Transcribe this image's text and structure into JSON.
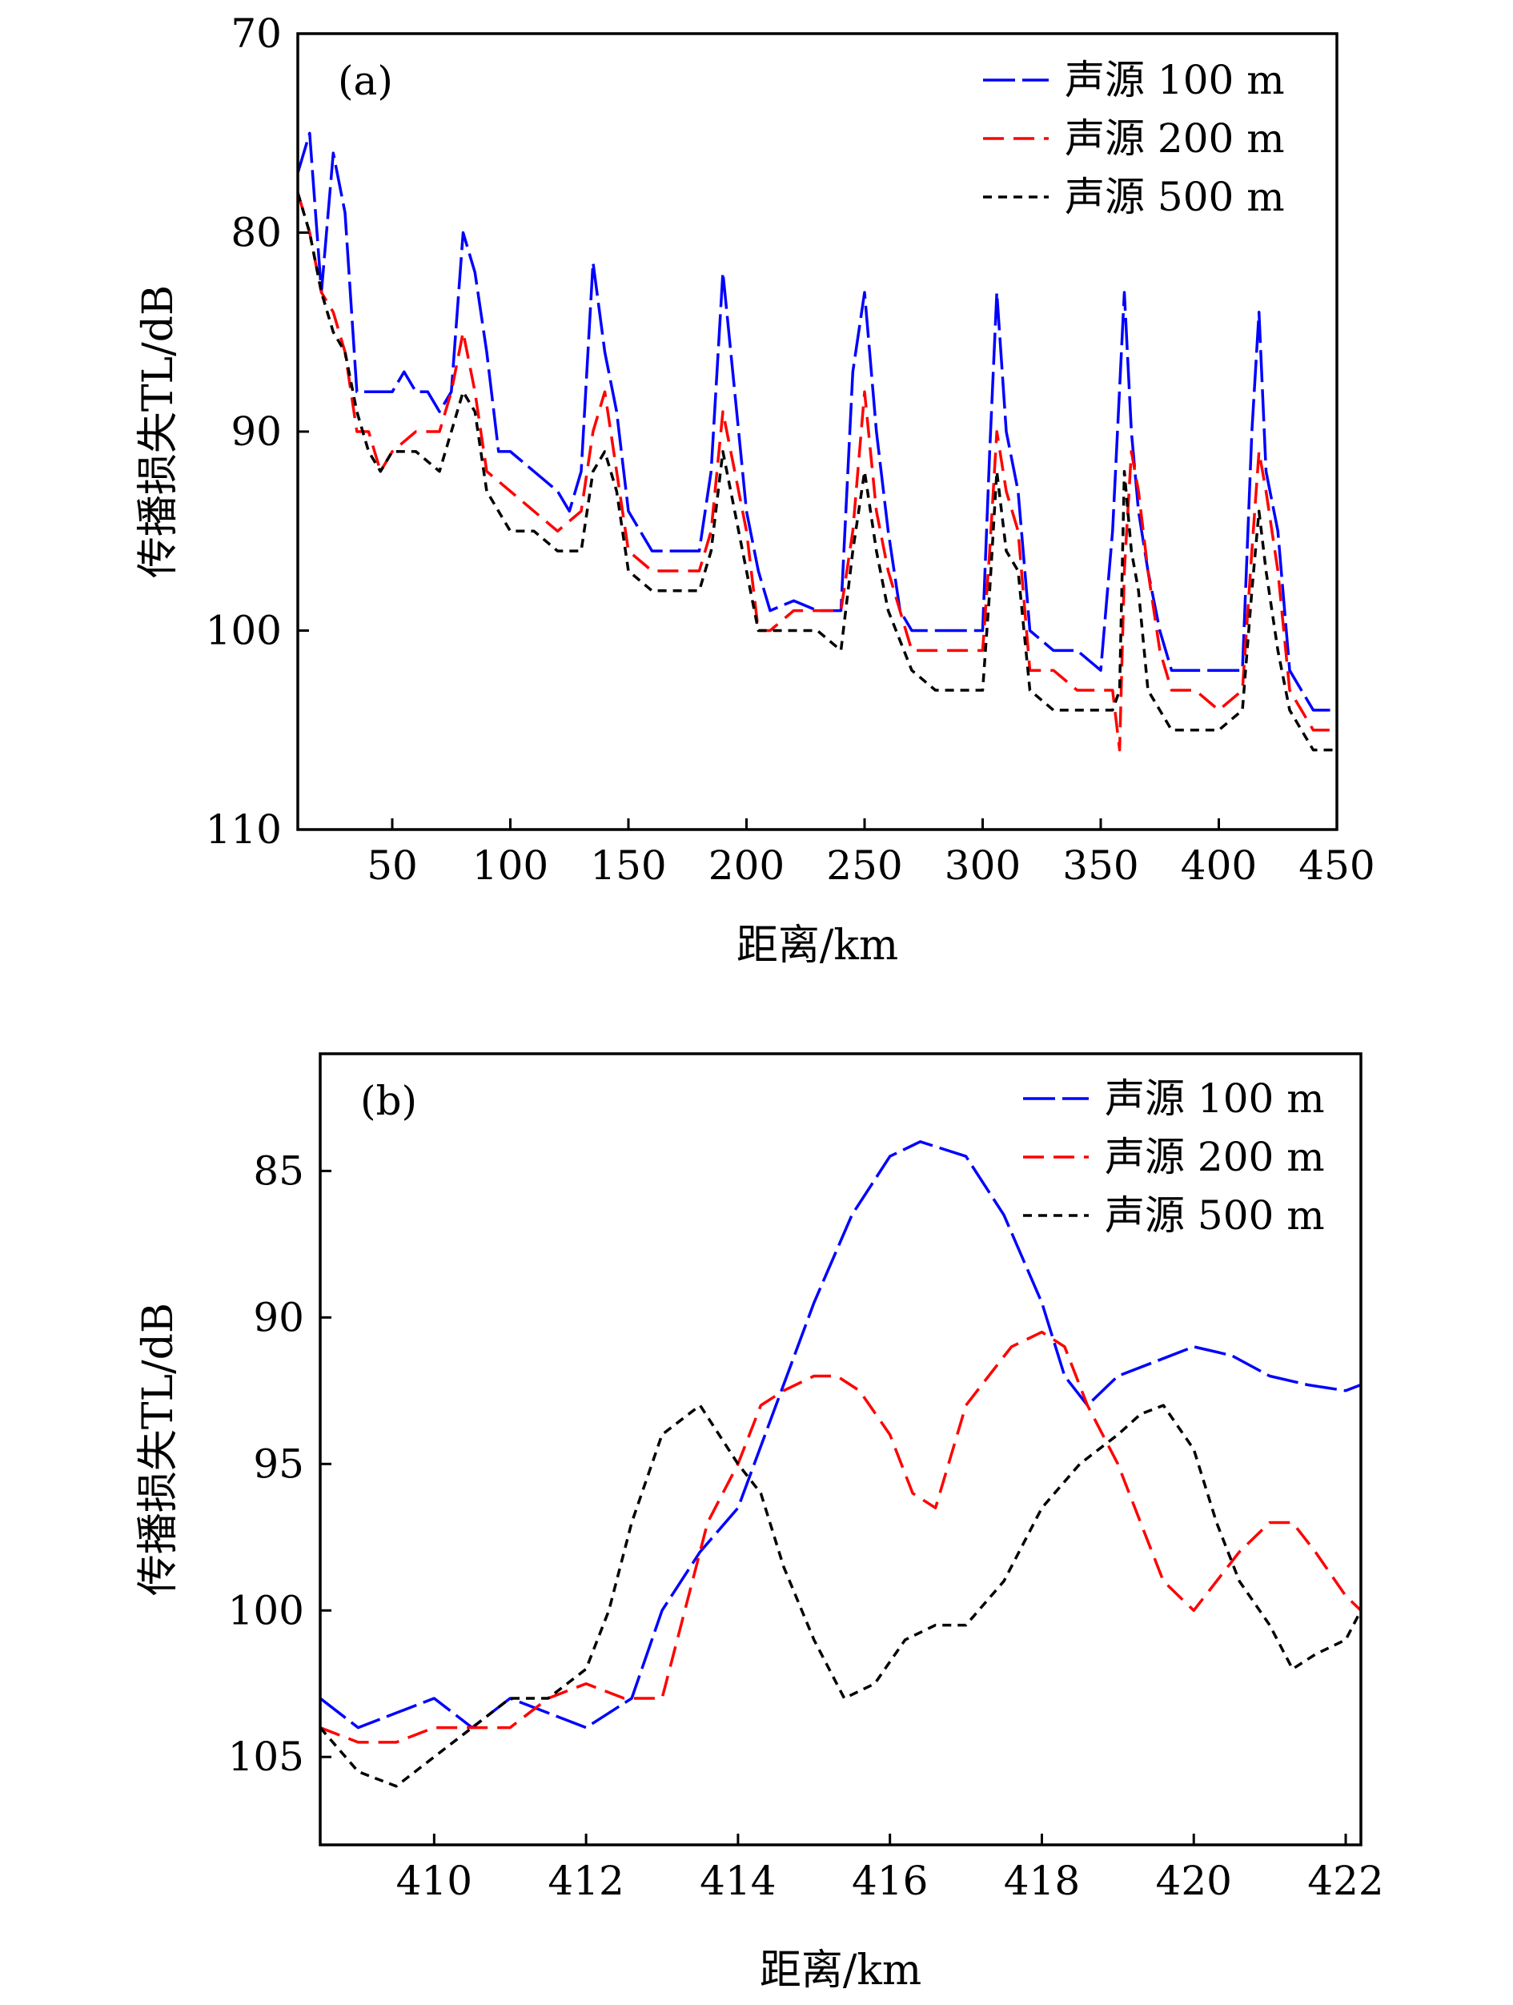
{
  "chart_data": [
    {
      "type": "line",
      "panel_label": "(a)",
      "xlabel": "距离/km",
      "ylabel": "传播损失TL/dB",
      "xlim": [
        10,
        450
      ],
      "ylim": [
        110,
        70
      ],
      "y_inverted": true,
      "xticks": [
        50,
        100,
        150,
        200,
        250,
        300,
        350,
        400,
        450
      ],
      "yticks": [
        70,
        80,
        90,
        100,
        110
      ],
      "legend_position": "top-right",
      "series": [
        {
          "name": "声源 100 m",
          "color": "#0000ff",
          "dash": "long",
          "x": [
            10,
            15,
            20,
            25,
            30,
            35,
            40,
            45,
            50,
            55,
            60,
            65,
            70,
            75,
            80,
            85,
            90,
            95,
            100,
            110,
            120,
            125,
            130,
            135,
            140,
            145,
            150,
            160,
            170,
            180,
            185,
            190,
            195,
            200,
            205,
            210,
            220,
            230,
            240,
            245,
            250,
            255,
            260,
            265,
            270,
            280,
            290,
            300,
            303,
            306,
            310,
            315,
            320,
            330,
            340,
            350,
            355,
            360,
            363,
            366,
            370,
            375,
            380,
            390,
            400,
            410,
            414,
            417,
            420,
            425,
            430,
            440,
            450
          ],
          "y": [
            77,
            75,
            83,
            76,
            79,
            88,
            88,
            88,
            88,
            87,
            88,
            88,
            89,
            88,
            80,
            82,
            86,
            91,
            91,
            92,
            93,
            94,
            92,
            81.5,
            86,
            89,
            94,
            96,
            96,
            96,
            92,
            82,
            88,
            94,
            97,
            99,
            98.5,
            99,
            99,
            87,
            83,
            90,
            95,
            99,
            100,
            100,
            100,
            100,
            91,
            83,
            90,
            93,
            100,
            101,
            101,
            102,
            95,
            83,
            90,
            94,
            97,
            100,
            102,
            102,
            102,
            102,
            90,
            84,
            92,
            95,
            102,
            104,
            104
          ]
        },
        {
          "name": "声源 200 m",
          "color": "#ff0000",
          "dash": "medium",
          "x": [
            10,
            15,
            20,
            25,
            30,
            35,
            40,
            45,
            50,
            60,
            70,
            75,
            80,
            85,
            90,
            100,
            110,
            120,
            130,
            135,
            140,
            145,
            150,
            160,
            170,
            180,
            185,
            190,
            195,
            200,
            205,
            210,
            220,
            230,
            240,
            245,
            250,
            255,
            260,
            270,
            280,
            290,
            300,
            303,
            306,
            310,
            315,
            320,
            330,
            340,
            350,
            355,
            358,
            360,
            363,
            366,
            370,
            375,
            380,
            390,
            400,
            410,
            414,
            417,
            420,
            425,
            430,
            440,
            450
          ],
          "y": [
            78,
            80,
            83,
            84,
            86,
            90,
            90,
            92,
            91,
            90,
            90,
            88,
            85,
            88,
            92,
            93,
            94,
            95,
            94,
            90,
            88,
            92,
            96,
            97,
            97,
            97,
            95,
            89,
            92,
            95,
            100,
            100,
            99,
            99,
            99,
            95,
            88,
            94,
            97,
            101,
            101,
            101,
            101,
            96,
            90,
            93,
            95,
            102,
            102,
            103,
            103,
            103,
            106,
            97,
            91,
            93,
            97,
            101,
            103,
            103,
            104,
            103,
            96,
            91,
            93,
            97,
            103,
            105,
            105
          ]
        },
        {
          "name": "声源 500 m",
          "color": "#000000",
          "dash": "short",
          "x": [
            10,
            15,
            20,
            25,
            30,
            35,
            40,
            45,
            50,
            60,
            70,
            75,
            80,
            85,
            90,
            100,
            110,
            120,
            130,
            135,
            140,
            145,
            150,
            160,
            170,
            180,
            185,
            190,
            195,
            200,
            205,
            210,
            220,
            230,
            240,
            245,
            250,
            255,
            260,
            270,
            280,
            290,
            300,
            303,
            306,
            310,
            315,
            320,
            330,
            340,
            350,
            355,
            358,
            360,
            363,
            366,
            370,
            375,
            380,
            390,
            400,
            410,
            414,
            417,
            420,
            425,
            430,
            440,
            450
          ],
          "y": [
            78,
            80,
            83,
            85,
            86,
            89,
            91,
            92,
            91,
            91,
            92,
            90,
            88,
            89,
            93,
            95,
            95,
            96,
            96,
            92,
            91,
            93,
            97,
            98,
            98,
            98,
            96,
            91,
            94,
            97,
            100,
            100,
            100,
            100,
            101,
            96,
            92,
            96,
            99,
            102,
            103,
            103,
            103,
            98,
            92,
            96,
            97,
            103,
            104,
            104,
            104,
            104,
            103,
            92,
            96,
            98,
            103,
            104,
            105,
            105,
            105,
            104,
            98,
            94,
            97,
            101,
            104,
            106,
            106
          ]
        }
      ]
    },
    {
      "type": "line",
      "panel_label": "(b)",
      "xlabel": "距离/km",
      "ylabel": "传播损失TL/dB",
      "xlim": [
        408.5,
        422.2
      ],
      "ylim": [
        108,
        81
      ],
      "y_inverted": true,
      "xticks": [
        410,
        412,
        414,
        416,
        418,
        420,
        422
      ],
      "yticks": [
        85,
        90,
        95,
        100,
        105
      ],
      "legend_position": "top-right",
      "series": [
        {
          "name": "声源 100 m",
          "color": "#0000ff",
          "dash": "long",
          "x": [
            408.5,
            409,
            409.5,
            410,
            410.5,
            411,
            411.5,
            412,
            412.3,
            412.6,
            413,
            413.5,
            414,
            414.5,
            415,
            415.5,
            416,
            416.4,
            417,
            417.5,
            418,
            418.3,
            418.6,
            419,
            419.5,
            420,
            420.5,
            421,
            421.5,
            422,
            422.2
          ],
          "y": [
            103,
            104,
            103.5,
            103,
            104,
            103,
            103.5,
            104,
            103.5,
            103,
            100,
            98,
            96.5,
            93,
            89.5,
            86.5,
            84.5,
            84,
            84.5,
            86.5,
            89.5,
            92,
            93,
            92,
            91.5,
            91,
            91.3,
            92,
            92.3,
            92.5,
            92.3
          ]
        },
        {
          "name": "声源 200 m",
          "color": "#ff0000",
          "dash": "medium",
          "x": [
            408.5,
            409,
            409.5,
            410,
            410.5,
            411,
            411.5,
            412,
            412.5,
            413,
            413.3,
            413.6,
            414,
            414.3,
            414.6,
            415,
            415.3,
            415.6,
            416,
            416.3,
            416.6,
            417,
            417.3,
            417.6,
            418,
            418.3,
            418.6,
            419,
            419.3,
            419.6,
            420,
            420.3,
            420.6,
            421,
            421.3,
            421.6,
            422,
            422.2
          ],
          "y": [
            104,
            104.5,
            104.5,
            104,
            104,
            104,
            103,
            102.5,
            103,
            103,
            100,
            97,
            95,
            93,
            92.5,
            92,
            92,
            92.5,
            94,
            96,
            96.5,
            93,
            92,
            91,
            90.5,
            91,
            93,
            95,
            97,
            99,
            100,
            99,
            98,
            97,
            97,
            98,
            99.5,
            100
          ]
        },
        {
          "name": "声源 500 m",
          "color": "#000000",
          "dash": "short",
          "x": [
            408.5,
            409,
            409.5,
            410,
            410.5,
            411,
            411.5,
            412,
            412.3,
            412.6,
            413,
            413.5,
            414,
            414.3,
            414.6,
            415,
            415.4,
            415.8,
            416.2,
            416.6,
            417,
            417.5,
            418,
            418.5,
            419,
            419.3,
            419.6,
            420,
            420.3,
            420.6,
            421,
            421.3,
            421.6,
            422,
            422.2
          ],
          "y": [
            104,
            105.5,
            106,
            105,
            104,
            103,
            103,
            102,
            100,
            97,
            94,
            93,
            95,
            96,
            98.5,
            101,
            103,
            102.5,
            101,
            100.5,
            100.5,
            99,
            96.5,
            95,
            94,
            93.3,
            93,
            94.5,
            97,
            99,
            100.5,
            102,
            101.5,
            101,
            100
          ]
        }
      ]
    }
  ]
}
